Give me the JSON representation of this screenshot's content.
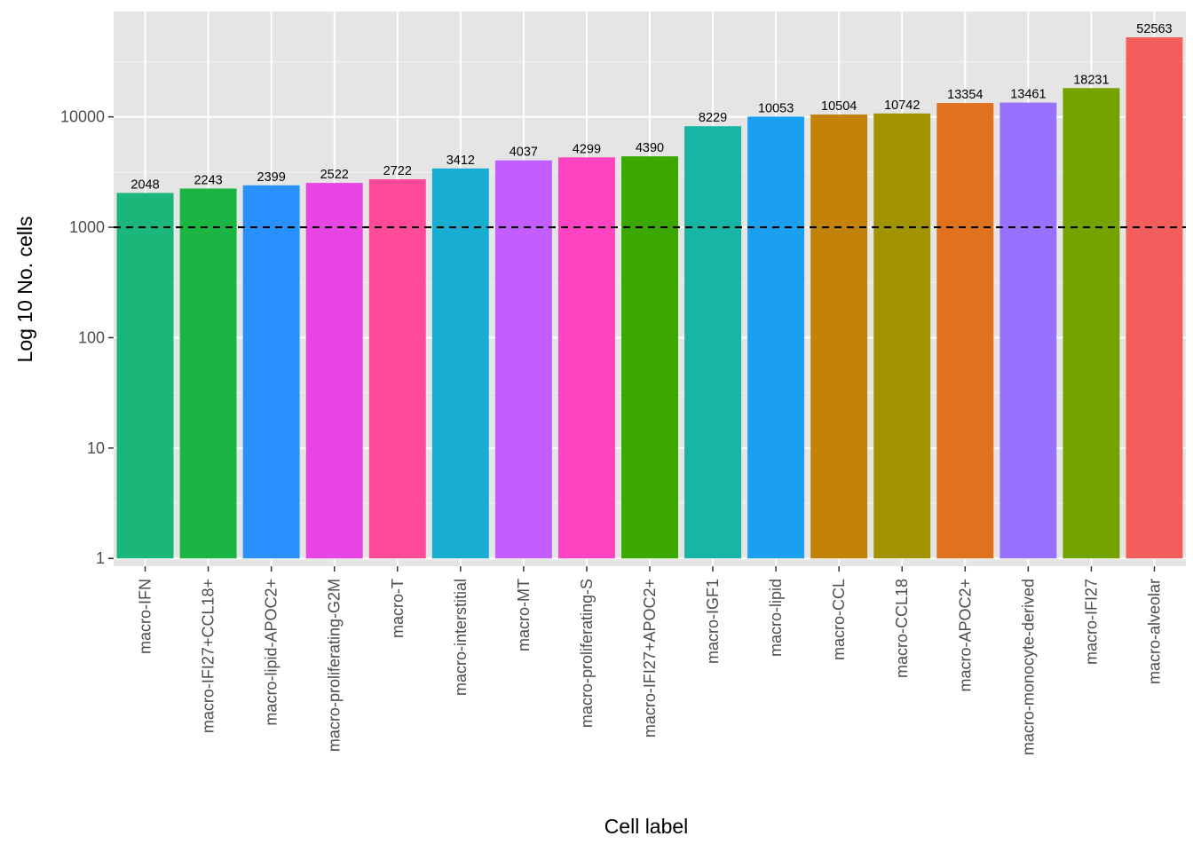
{
  "chart_data": {
    "type": "bar",
    "title": "",
    "xlabel": "Cell label",
    "ylabel": "Log 10 No. cells",
    "yscale": "log10",
    "ylim": [
      0.85,
      90000
    ],
    "yticks": [
      1,
      10,
      100,
      1000,
      10000
    ],
    "ytick_labels": [
      "1",
      "10",
      "100",
      "1000",
      "10000"
    ],
    "reference_line": {
      "value": 1000,
      "style": "dashed",
      "color": "#000000"
    },
    "categories": [
      "macro-IFN",
      "macro-IFI27+CCL18+",
      "macro-lipid-APOC2+",
      "macro-proliferating-G2M",
      "macro-T",
      "macro-interstitial",
      "macro-MT",
      "macro-proliferating-S",
      "macro-IFI27+APOC2+",
      "macro-IGF1",
      "macro-lipid",
      "macro-CCL",
      "macro-CCL18",
      "macro-APOC2+",
      "macro-monocyte-derived",
      "macro-IFI27",
      "macro-alveolar"
    ],
    "values": [
      2048,
      2243,
      2399,
      2522,
      2722,
      3412,
      4037,
      4299,
      4390,
      8229,
      10053,
      10504,
      10742,
      13354,
      13461,
      18231,
      52563
    ],
    "value_labels": [
      "2048",
      "2243",
      "2399",
      "2522",
      "2722",
      "3412",
      "4037",
      "4299",
      "4390",
      "8229",
      "10053",
      "10504",
      "10742",
      "13354",
      "13461",
      "18231",
      "52563"
    ],
    "colors": [
      "#1BB679",
      "#1AB543",
      "#2991FF",
      "#E845E4",
      "#FF4A9A",
      "#17AED1",
      "#C25EFF",
      "#FF44C1",
      "#3BA800",
      "#17B5A4",
      "#1A9FF1",
      "#C38308",
      "#A19300",
      "#E0721D",
      "#9772FF",
      "#74A300",
      "#F35E5D"
    ],
    "panel_background": "#E5E5E5",
    "grid": true,
    "legend": "none"
  }
}
